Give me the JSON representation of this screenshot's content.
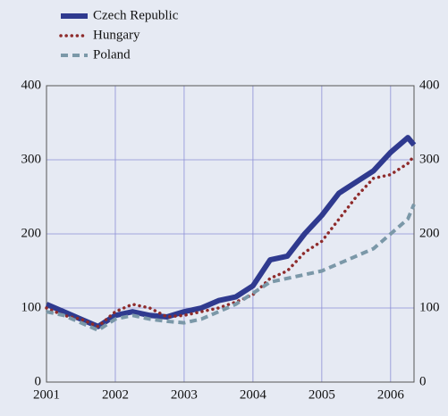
{
  "chart_data": {
    "type": "line",
    "x": [
      2001,
      2001.25,
      2001.5,
      2001.75,
      2002,
      2002.25,
      2002.5,
      2002.75,
      2003,
      2003.25,
      2003.5,
      2003.75,
      2004,
      2004.25,
      2004.5,
      2004.75,
      2005,
      2005.25,
      2005.5,
      2005.75,
      2006,
      2006.25,
      2006.34
    ],
    "series": [
      {
        "name": "Czech Republic",
        "color": "#2f3a8f",
        "values": [
          105,
          95,
          85,
          75,
          90,
          95,
          90,
          88,
          95,
          100,
          110,
          115,
          130,
          165,
          170,
          200,
          225,
          255,
          270,
          285,
          310,
          330,
          320
        ]
      },
      {
        "name": "Hungary",
        "color": "#8e2b2b",
        "values": [
          100,
          90,
          85,
          75,
          95,
          105,
          100,
          88,
          90,
          95,
          100,
          108,
          118,
          140,
          150,
          175,
          190,
          220,
          250,
          275,
          280,
          295,
          305
        ]
      },
      {
        "name": "Poland",
        "color": "#7b98a8",
        "values": [
          95,
          90,
          80,
          70,
          85,
          90,
          85,
          82,
          80,
          85,
          95,
          105,
          120,
          135,
          140,
          145,
          150,
          160,
          170,
          180,
          200,
          220,
          240
        ]
      }
    ],
    "xlim": [
      2001,
      2006.34
    ],
    "xticks": [
      2001,
      2002,
      2003,
      2004,
      2005,
      2006
    ],
    "ylim": [
      0,
      400
    ],
    "yticks": [
      0,
      100,
      200,
      300,
      400
    ],
    "y2lim": [
      0,
      400
    ],
    "y2ticks": [
      0,
      100,
      200,
      300,
      400
    ],
    "grid": true,
    "legend": "top-left"
  }
}
